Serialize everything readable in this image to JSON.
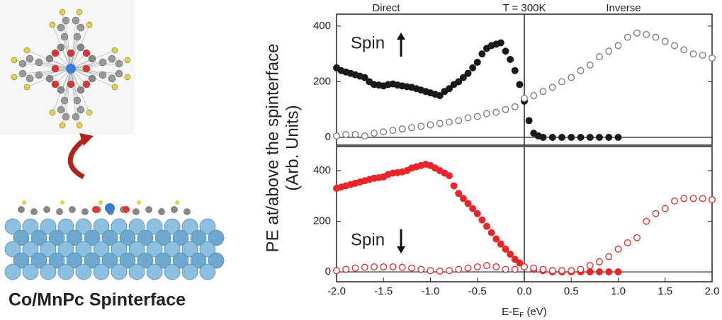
{
  "chart_data": [
    {
      "type": "scatter",
      "header_labels": [
        "Direct",
        "T = 300K",
        "Inverse"
      ],
      "annotation": "Spin",
      "spin_arrow": "up",
      "xlim": [
        -2,
        2
      ],
      "ylim": [
        -28,
        443
      ],
      "yticks": [
        0,
        200,
        400
      ],
      "vline": 0,
      "series": [
        {
          "color": "#1a1a1a",
          "marker": "filled",
          "x": [
            -2.0,
            -1.95,
            -1.9,
            -1.85,
            -1.8,
            -1.75,
            -1.7,
            -1.65,
            -1.6,
            -1.55,
            -1.5,
            -1.45,
            -1.4,
            -1.35,
            -1.3,
            -1.25,
            -1.2,
            -1.15,
            -1.1,
            -1.05,
            -1.0,
            -0.95,
            -0.9,
            -0.85,
            -0.8,
            -0.75,
            -0.7,
            -0.65,
            -0.6,
            -0.55,
            -0.5,
            -0.45,
            -0.4,
            -0.35,
            -0.3,
            -0.25,
            -0.2,
            -0.15,
            -0.1,
            -0.05,
            0.0,
            0.05,
            0.1,
            0.15,
            0.2,
            0.3,
            0.4,
            0.5,
            0.6,
            0.7,
            0.8,
            0.9,
            1.0
          ],
          "values": [
            250,
            240,
            235,
            230,
            225,
            220,
            215,
            200,
            190,
            188,
            185,
            190,
            192,
            188,
            185,
            182,
            180,
            175,
            170,
            165,
            160,
            155,
            150,
            165,
            175,
            190,
            200,
            215,
            230,
            250,
            270,
            300,
            320,
            330,
            335,
            340,
            310,
            280,
            240,
            190,
            130,
            60,
            15,
            5,
            0,
            0,
            0,
            0,
            0,
            0,
            0,
            0,
            0
          ]
        },
        {
          "color": "#777777",
          "marker": "open",
          "x": [
            -2.0,
            -1.9,
            -1.8,
            -1.7,
            -1.6,
            -1.5,
            -1.4,
            -1.3,
            -1.2,
            -1.1,
            -1.0,
            -0.9,
            -0.8,
            -0.7,
            -0.6,
            -0.5,
            -0.4,
            -0.3,
            -0.2,
            -0.1,
            0.0,
            0.1,
            0.2,
            0.3,
            0.4,
            0.5,
            0.6,
            0.7,
            0.8,
            0.9,
            1.0,
            1.1,
            1.2,
            1.3,
            1.4,
            1.5,
            1.6,
            1.7,
            1.8,
            1.9,
            2.0
          ],
          "values": [
            5,
            10,
            10,
            5,
            15,
            20,
            25,
            30,
            35,
            40,
            45,
            50,
            55,
            60,
            70,
            75,
            85,
            90,
            100,
            110,
            140,
            150,
            165,
            180,
            200,
            215,
            240,
            260,
            290,
            310,
            330,
            360,
            375,
            370,
            360,
            345,
            330,
            315,
            300,
            295,
            285
          ]
        }
      ]
    },
    {
      "type": "scatter",
      "annotation": "Spin",
      "spin_arrow": "down",
      "xlim": [
        -2,
        2
      ],
      "xticks": [
        {
          "value": -2,
          "label": "-2.0"
        },
        -1.5,
        {
          "value": -1,
          "label": "-1.0"
        },
        -0.5,
        {
          "value": 0,
          "label": "0.0"
        },
        0.5,
        {
          "value": 1,
          "label": "1.0"
        },
        1.5,
        {
          "value": 2,
          "label": "2.0"
        }
      ],
      "ylim": [
        -39,
        495
      ],
      "yticks": [
        0,
        200,
        400
      ],
      "vline": 0,
      "series": [
        {
          "color": "#e8262a",
          "marker": "filled",
          "x": [
            -2.0,
            -1.95,
            -1.9,
            -1.85,
            -1.8,
            -1.75,
            -1.7,
            -1.65,
            -1.6,
            -1.55,
            -1.5,
            -1.45,
            -1.4,
            -1.35,
            -1.3,
            -1.25,
            -1.2,
            -1.15,
            -1.1,
            -1.05,
            -1.0,
            -0.95,
            -0.9,
            -0.85,
            -0.8,
            -0.75,
            -0.7,
            -0.65,
            -0.6,
            -0.55,
            -0.5,
            -0.45,
            -0.4,
            -0.35,
            -0.3,
            -0.25,
            -0.2,
            -0.15,
            -0.1,
            -0.05,
            0.0,
            0.1,
            0.2,
            0.3,
            0.4,
            0.5,
            0.6,
            0.7,
            0.8,
            0.9,
            1.0
          ],
          "values": [
            330,
            335,
            340,
            345,
            350,
            355,
            360,
            365,
            370,
            372,
            375,
            385,
            390,
            392,
            395,
            400,
            410,
            415,
            420,
            425,
            420,
            410,
            400,
            390,
            380,
            340,
            310,
            290,
            270,
            250,
            230,
            205,
            180,
            155,
            130,
            110,
            90,
            70,
            50,
            35,
            20,
            10,
            5,
            0,
            0,
            0,
            0,
            0,
            0,
            0,
            0
          ]
        },
        {
          "color": "#e8262a",
          "marker": "open",
          "x": [
            -2.0,
            -1.9,
            -1.8,
            -1.7,
            -1.6,
            -1.5,
            -1.4,
            -1.3,
            -1.2,
            -1.1,
            -1.0,
            -0.9,
            -0.8,
            -0.7,
            -0.6,
            -0.5,
            -0.4,
            -0.3,
            -0.2,
            -0.1,
            0.0,
            0.1,
            0.2,
            0.3,
            0.4,
            0.5,
            0.6,
            0.7,
            0.8,
            0.9,
            1.0,
            1.1,
            1.2,
            1.3,
            1.4,
            1.5,
            1.6,
            1.7,
            1.8,
            1.9,
            2.0
          ],
          "values": [
            5,
            10,
            15,
            18,
            20,
            20,
            20,
            18,
            15,
            10,
            5,
            3,
            5,
            10,
            15,
            20,
            25,
            20,
            10,
            10,
            20,
            15,
            10,
            5,
            5,
            5,
            10,
            25,
            40,
            60,
            90,
            115,
            135,
            200,
            230,
            250,
            280,
            290,
            290,
            290,
            285
          ]
        }
      ]
    }
  ],
  "figure": {
    "ylabel_lines": [
      "PE at/above the spinterface",
      "(Arb. Units)"
    ],
    "xlabel": [
      "E-E",
      "F",
      " (eV)"
    ],
    "caption": "Co/MnPc Spinterface"
  }
}
